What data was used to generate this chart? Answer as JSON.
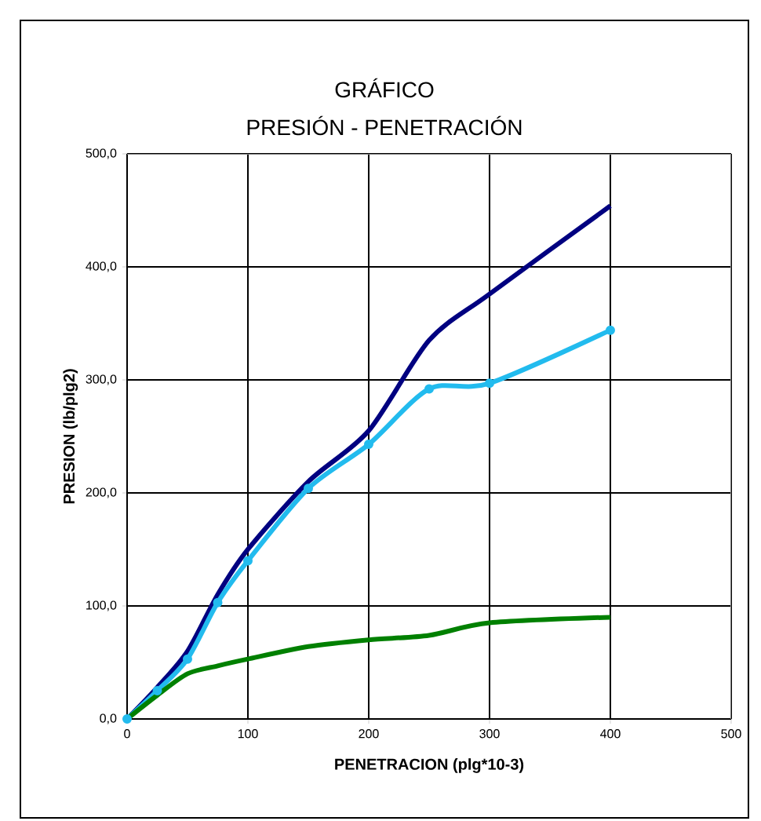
{
  "chart_data": {
    "type": "line",
    "title": "GRÁFICO",
    "subtitle": "PRESIÓN - PENETRACIÓN",
    "xlabel": "PENETRACION (plg*10-3)",
    "ylabel": "PRESION (lb/plg2)",
    "x": [
      0,
      25,
      50,
      75,
      100,
      150,
      200,
      250,
      300,
      400
    ],
    "series": [
      {
        "color": "#000080",
        "marker": "none",
        "values": [
          0,
          28,
          60,
          110,
          150,
          210,
          255,
          335,
          376,
          454
        ]
      },
      {
        "color": "#22bbee",
        "marker": "circle",
        "values": [
          0,
          25,
          53,
          103,
          140,
          204,
          243,
          292,
          297,
          344
        ]
      },
      {
        "color": "#008000",
        "marker": "none",
        "values": [
          0,
          21,
          40,
          47,
          53,
          64,
          70,
          74,
          85,
          90
        ]
      }
    ],
    "xlim": [
      0,
      500
    ],
    "ylim": [
      0,
      500
    ],
    "xticks": [
      0,
      100,
      200,
      300,
      400,
      500
    ],
    "yticks": [
      {
        "value": 0,
        "label": "0,0"
      },
      {
        "value": 100,
        "label": "100,0"
      },
      {
        "value": 200,
        "label": "200,0"
      },
      {
        "value": 300,
        "label": "300,0"
      },
      {
        "value": 400,
        "label": "400,0"
      },
      {
        "value": 500,
        "label": "500,0"
      }
    ],
    "grid": true
  }
}
